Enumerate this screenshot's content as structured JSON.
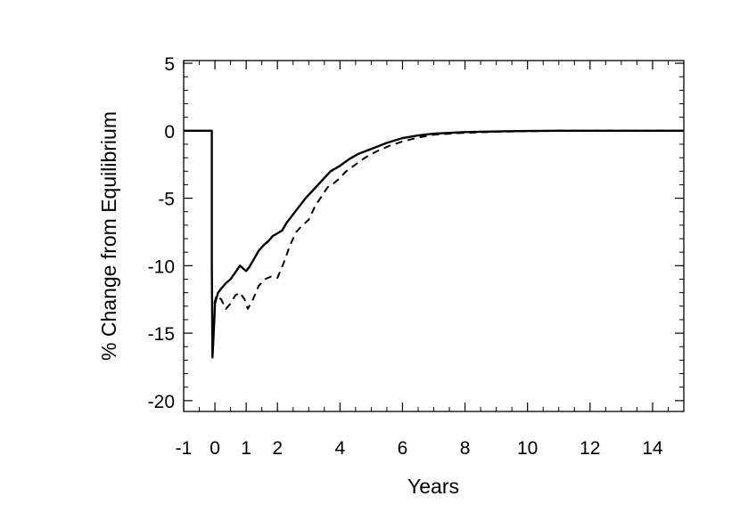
{
  "chart_data": {
    "type": "line",
    "title": "",
    "xlabel": "Years",
    "ylabel": "% Change from Equilibrium",
    "xlim": [
      -1,
      15
    ],
    "ylim": [
      -20.8,
      5.2
    ],
    "xticks": [
      -1,
      0,
      1,
      2,
      4,
      6,
      8,
      10,
      12,
      14
    ],
    "yticks": [
      5,
      0,
      -5,
      -10,
      -15,
      -20
    ],
    "grid": false,
    "legend": "none",
    "colors": {
      "line": "#000000",
      "background": "#ffffff"
    },
    "series": [
      {
        "style": "solid",
        "points": [
          [
            -1,
            0
          ],
          [
            -0.15,
            0
          ],
          [
            -0.1,
            0
          ],
          [
            -0.1,
            -10
          ],
          [
            -0.08,
            -16.8
          ],
          [
            -0.05,
            -15.5
          ],
          [
            -0.02,
            -14
          ],
          [
            0,
            -12.8
          ],
          [
            0.1,
            -12.0
          ],
          [
            0.2,
            -11.7
          ],
          [
            0.35,
            -11.3
          ],
          [
            0.5,
            -11.0
          ],
          [
            0.65,
            -10.5
          ],
          [
            0.8,
            -10.0
          ],
          [
            0.9,
            -10.2
          ],
          [
            1.0,
            -10.4
          ],
          [
            1.1,
            -10.1
          ],
          [
            1.25,
            -9.5
          ],
          [
            1.4,
            -8.9
          ],
          [
            1.55,
            -8.5
          ],
          [
            1.7,
            -8.2
          ],
          [
            1.85,
            -7.8
          ],
          [
            2.0,
            -7.6
          ],
          [
            2.15,
            -7.4
          ],
          [
            2.3,
            -6.8
          ],
          [
            2.5,
            -6.2
          ],
          [
            2.7,
            -5.6
          ],
          [
            2.9,
            -5.0
          ],
          [
            3.1,
            -4.5
          ],
          [
            3.3,
            -4.0
          ],
          [
            3.5,
            -3.5
          ],
          [
            3.7,
            -3.0
          ],
          [
            4.0,
            -2.6
          ],
          [
            4.3,
            -2.1
          ],
          [
            4.6,
            -1.7
          ],
          [
            5.0,
            -1.35
          ],
          [
            5.5,
            -0.9
          ],
          [
            6.0,
            -0.55
          ],
          [
            6.5,
            -0.35
          ],
          [
            7.0,
            -0.22
          ],
          [
            8.0,
            -0.1
          ],
          [
            9.0,
            -0.05
          ],
          [
            10.0,
            -0.02
          ],
          [
            11.0,
            0
          ],
          [
            12.0,
            0
          ],
          [
            13.0,
            0
          ],
          [
            14.0,
            0
          ],
          [
            15.0,
            0
          ]
        ]
      },
      {
        "style": "dashed",
        "points": [
          [
            -0.02,
            -12.8
          ],
          [
            0.05,
            -12.2
          ],
          [
            0.2,
            -12.5
          ],
          [
            0.35,
            -13.2
          ],
          [
            0.5,
            -12.8
          ],
          [
            0.65,
            -12.2
          ],
          [
            0.8,
            -12.0
          ],
          [
            0.95,
            -12.5
          ],
          [
            1.05,
            -13.2
          ],
          [
            1.2,
            -12.6
          ],
          [
            1.4,
            -11.5
          ],
          [
            1.6,
            -11.0
          ],
          [
            1.8,
            -10.8
          ],
          [
            2.0,
            -10.9
          ],
          [
            2.2,
            -9.8
          ],
          [
            2.4,
            -8.5
          ],
          [
            2.6,
            -7.5
          ],
          [
            2.8,
            -7.0
          ],
          [
            3.0,
            -6.6
          ],
          [
            3.2,
            -5.6
          ],
          [
            3.4,
            -4.9
          ],
          [
            3.6,
            -4.2
          ],
          [
            3.8,
            -3.9
          ],
          [
            4.0,
            -3.5
          ],
          [
            4.2,
            -3.0
          ],
          [
            4.5,
            -2.5
          ],
          [
            4.8,
            -2.0
          ],
          [
            5.2,
            -1.5
          ],
          [
            5.6,
            -1.1
          ],
          [
            6.0,
            -0.8
          ],
          [
            6.5,
            -0.5
          ],
          [
            7.0,
            -0.3
          ],
          [
            8.0,
            -0.15
          ],
          [
            9.0,
            -0.08
          ],
          [
            10.0,
            -0.04
          ],
          [
            11.0,
            0
          ],
          [
            12.0,
            0
          ],
          [
            13.0,
            0
          ],
          [
            14.0,
            0
          ],
          [
            15.0,
            0
          ]
        ]
      }
    ]
  }
}
